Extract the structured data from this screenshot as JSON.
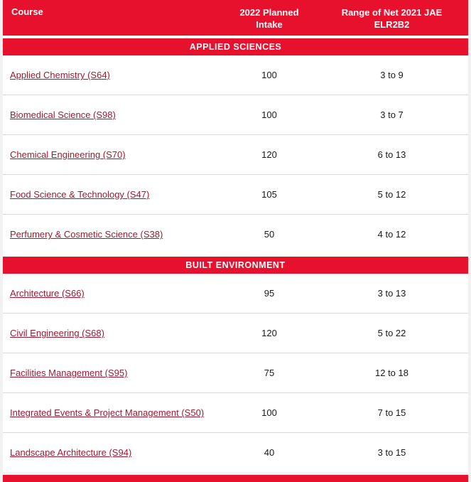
{
  "colors": {
    "header_bg": "#e8112d",
    "header_text": "#ffffff",
    "link": "#a01931",
    "row_border": "#d9d9d9",
    "value_text": "#1a1a1a",
    "page_bg": "#f1f1f1"
  },
  "table": {
    "header": {
      "course": "Course",
      "intake": "2022 Planned Intake",
      "range": "Range of Net 2021 JAE ELR2B2"
    },
    "sections": [
      {
        "title": "APPLIED SCIENCES",
        "rows": [
          {
            "course": "Applied Chemistry (S64)",
            "intake": "100",
            "range": "3 to 9"
          },
          {
            "course": "Biomedical Science (S98)",
            "intake": "100",
            "range": "3 to 7"
          },
          {
            "course": "Chemical Engineering (S70)",
            "intake": "120",
            "range": "6 to 13"
          },
          {
            "course": "Food Science & Technology (S47)",
            "intake": "105",
            "range": "5 to 12"
          },
          {
            "course": "Perfumery & Cosmetic Science (S38)",
            "intake": "50",
            "range": "4 to 12"
          }
        ]
      },
      {
        "title": "BUILT ENVIRONMENT",
        "rows": [
          {
            "course": "Architecture (S66)",
            "intake": "95",
            "range": "3 to 13"
          },
          {
            "course": "Civil Engineering (S68)",
            "intake": "120",
            "range": "5 to 22"
          },
          {
            "course": "Facilities Management (S95)",
            "intake": "75",
            "range": "12 to 18"
          },
          {
            "course": "Integrated Events & Project Management (S50)",
            "intake": "100",
            "range": "7 to 15"
          },
          {
            "course": "Landscape Architecture (S94)",
            "intake": "40",
            "range": "3 to 15"
          }
        ]
      }
    ]
  }
}
